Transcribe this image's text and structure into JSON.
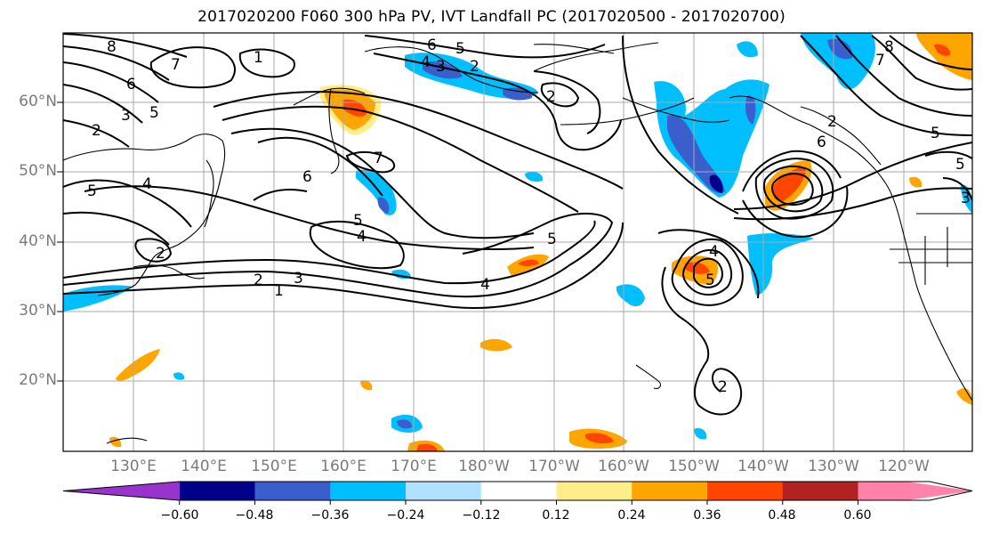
{
  "title": "2017020200 F060 300 hPa PV, IVT Landfall PC (2017020500 - 2017020700)",
  "lat_labels": [
    "60°N",
    "50°N",
    "40°N",
    "30°N",
    "20°N"
  ],
  "lon_labels": [
    "130°E",
    "140°E",
    "150°E",
    "160°E",
    "170°E",
    "180°W",
    "170°W",
    "160°W",
    "150°W",
    "140°W",
    "130°W",
    "120°W"
  ],
  "contour_labels": [
    "8",
    "7",
    "6",
    "5",
    "4",
    "3",
    "2",
    "1"
  ],
  "colorbar": {
    "ticks": [
      "−0.60",
      "−0.48",
      "−0.36",
      "−0.24",
      "−0.12",
      "0.12",
      "0.24",
      "0.36",
      "0.48",
      "0.60"
    ],
    "colors": [
      "#9a32cd",
      "#00008b",
      "#3a5fcd",
      "#00bfff",
      "#b0e2ff",
      "#ffffff",
      "#ffec8b",
      "#ffa500",
      "#ff4500",
      "#b22222",
      "#ff82ab"
    ]
  },
  "field_colors": {
    "neg_strong": "#3a5fcd",
    "neg": "#00bfff",
    "neg_weak": "#b0e2ff",
    "pos_weak": "#ffec8b",
    "pos": "#ffa500",
    "pos_strong": "#ff4500",
    "pos_max": "#b22222",
    "contour": "#000000",
    "grid": "#a9a9a9"
  }
}
